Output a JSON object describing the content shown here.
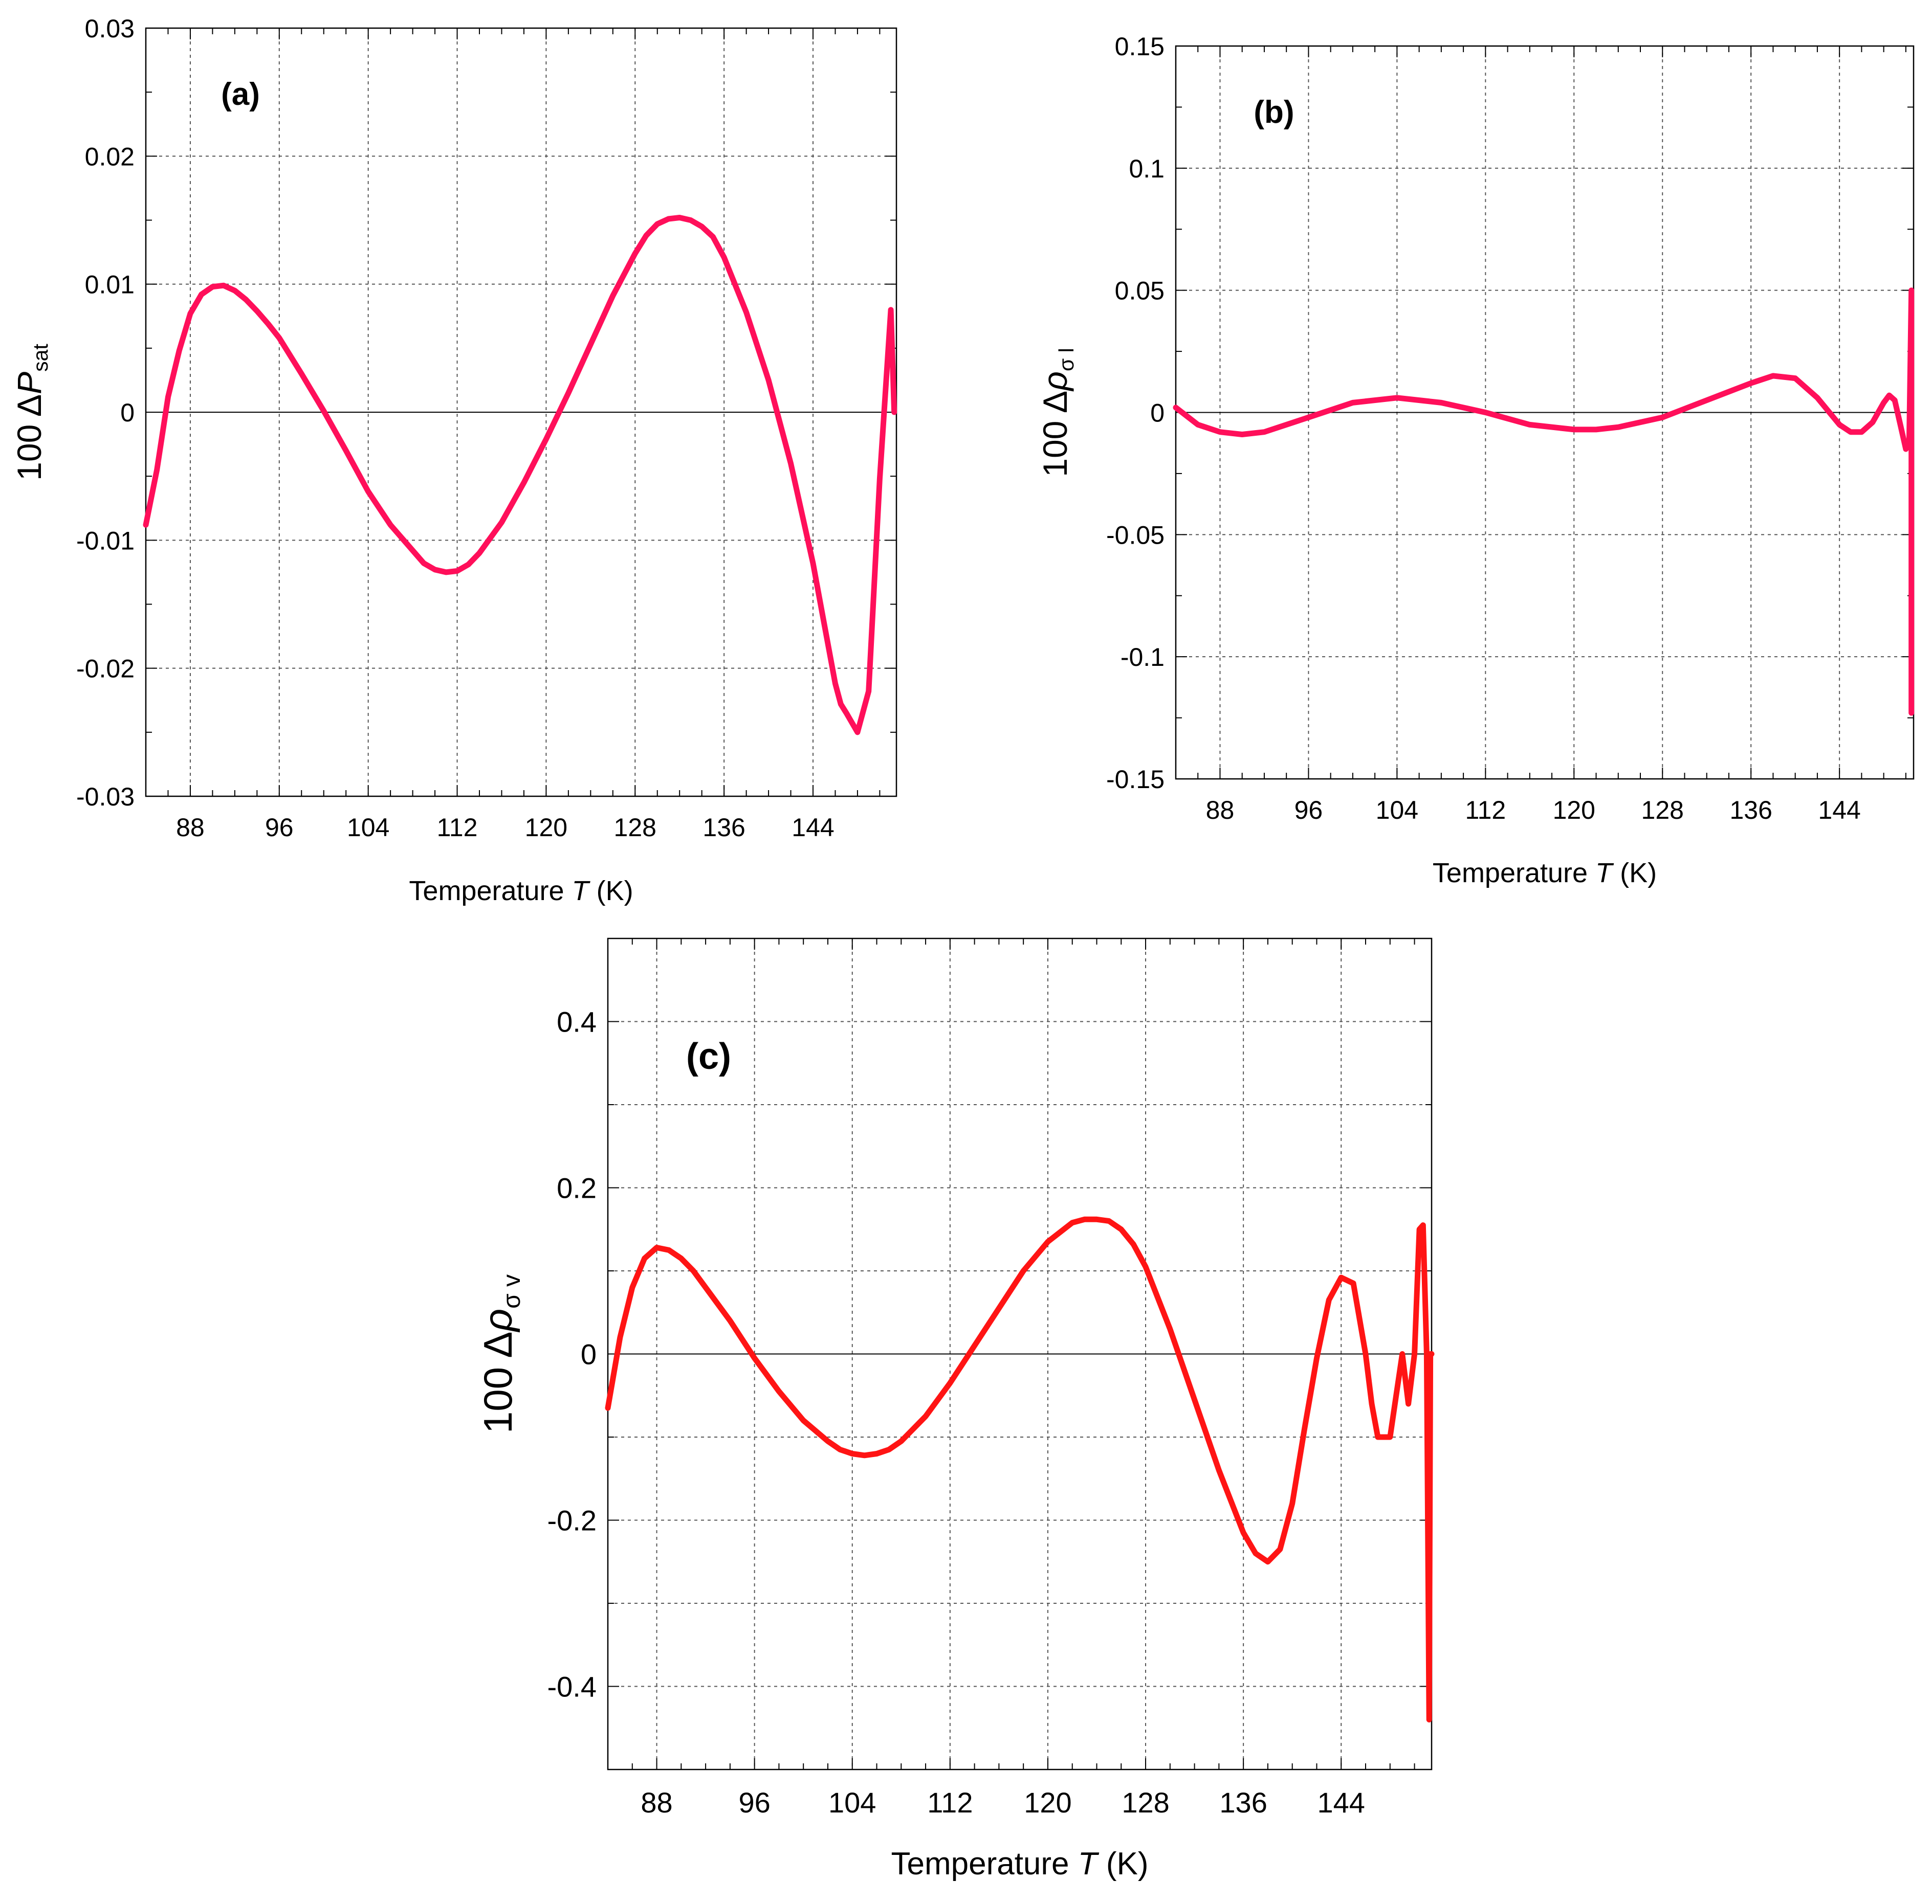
{
  "colors": {
    "panel_a": "#ff0f5a",
    "panel_b": "#ff0f5a",
    "panel_c": "#ff1414",
    "grid": "#555555",
    "axis": "#000000"
  },
  "chart_data": [
    {
      "id": "a",
      "type": "line",
      "panel_label": "(a)",
      "title": "",
      "xlabel": "Temperature T (K)",
      "xlabel_parts": {
        "pre": "Temperature ",
        "italic": "T",
        "post": " (K)"
      },
      "ylabel": "100 ΔPsat",
      "ylabel_parts": {
        "pre": "100 Δ",
        "italic": "P",
        "sub": "sat"
      },
      "xlim": [
        84,
        151.5
      ],
      "ylim": [
        -0.03,
        0.03
      ],
      "xticks": [
        88,
        96,
        104,
        112,
        120,
        128,
        136,
        144
      ],
      "xtick_labels": [
        "88",
        "96",
        "104",
        "112",
        "120",
        "128",
        "136",
        "144"
      ],
      "yticks": [
        -0.03,
        -0.02,
        -0.01,
        0,
        0.01,
        0.02,
        0.03
      ],
      "ytick_labels": [
        "-0.03",
        "-0.02",
        "-0.01",
        "0",
        "0.01",
        "0.02",
        "0.03"
      ],
      "grid": true,
      "zero_line": true,
      "series": [
        {
          "x": [
            84,
            85,
            86,
            87,
            88,
            89,
            90,
            91,
            92,
            93,
            94,
            95,
            96,
            98,
            100,
            102,
            104,
            106,
            108,
            109,
            110,
            111,
            112,
            113,
            114,
            116,
            118,
            120,
            122,
            124,
            126,
            128,
            129,
            130,
            131,
            132,
            133,
            134,
            135,
            136,
            138,
            140,
            142,
            144,
            145,
            146,
            146.5,
            147,
            148,
            149,
            150,
            151,
            151.3
          ],
          "y": [
            -0.0088,
            -0.0045,
            0.0012,
            0.0048,
            0.0077,
            0.0092,
            0.0098,
            0.0099,
            0.0095,
            0.0088,
            0.0079,
            0.0069,
            0.0058,
            0.003,
            0.0001,
            -0.003,
            -0.0062,
            -0.0088,
            -0.0108,
            -0.0118,
            -0.0123,
            -0.0125,
            -0.0124,
            -0.0119,
            -0.011,
            -0.0086,
            -0.0055,
            -0.0021,
            0.0015,
            0.0053,
            0.0091,
            0.0124,
            0.0138,
            0.0147,
            0.0151,
            0.0152,
            0.015,
            0.0145,
            0.0137,
            0.0121,
            0.0078,
            0.0025,
            -0.004,
            -0.0118,
            -0.0165,
            -0.0212,
            -0.0228,
            -0.0235,
            -0.025,
            -0.0218,
            -0.0052,
            0.008,
            0.0
          ]
        }
      ]
    },
    {
      "id": "b",
      "type": "line",
      "panel_label": "(b)",
      "title": "",
      "xlabel": "Temperature T (K)",
      "xlabel_parts": {
        "pre": "Temperature ",
        "italic": "T",
        "post": " (K)"
      },
      "ylabel": "100 Δρσl",
      "ylabel_parts": {
        "pre": "100 Δ",
        "italic": "ρ",
        "sub": "σ l"
      },
      "xlim": [
        84,
        150.7
      ],
      "ylim": [
        -0.15,
        0.15
      ],
      "xticks": [
        88,
        96,
        104,
        112,
        120,
        128,
        136,
        144
      ],
      "xtick_labels": [
        "88",
        "96",
        "104",
        "112",
        "120",
        "128",
        "136",
        "144"
      ],
      "yticks": [
        -0.15,
        -0.1,
        -0.05,
        0,
        0.05,
        0.1,
        0.15
      ],
      "ytick_labels": [
        "-0.15",
        "-0.1",
        "-0.05",
        "0",
        "0.05",
        "0.1",
        "0.15"
      ],
      "grid": true,
      "zero_line": true,
      "series": [
        {
          "x": [
            84,
            86,
            88,
            90,
            92,
            96,
            100,
            104,
            108,
            112,
            116,
            120,
            122,
            124,
            128,
            132,
            136,
            138,
            140,
            142,
            144,
            145,
            146,
            147,
            148,
            148.5,
            149,
            149.5,
            150,
            150.3,
            150.5,
            150.5
          ],
          "y": [
            0.002,
            -0.005,
            -0.008,
            -0.009,
            -0.008,
            -0.002,
            0.004,
            0.006,
            0.004,
            0.0,
            -0.005,
            -0.007,
            -0.007,
            -0.006,
            -0.002,
            0.005,
            0.012,
            0.015,
            0.014,
            0.006,
            -0.005,
            -0.008,
            -0.008,
            -0.004,
            0.004,
            0.007,
            0.005,
            -0.005,
            -0.015,
            -0.012,
            0.05,
            -0.123
          ]
        }
      ]
    },
    {
      "id": "c",
      "type": "line",
      "panel_label": "(c)",
      "title": "",
      "xlabel": "Temperature T (K)",
      "xlabel_parts": {
        "pre": "Temperature ",
        "italic": "T",
        "post": " (K)"
      },
      "ylabel": "100 Δρσv",
      "ylabel_parts": {
        "pre": "100 Δ",
        "italic": "ρ",
        "sub": "σ v"
      },
      "xlim": [
        84,
        151.4
      ],
      "ylim": [
        -0.5,
        0.5
      ],
      "xticks": [
        88,
        96,
        104,
        112,
        120,
        128,
        136,
        144
      ],
      "xtick_labels": [
        "88",
        "96",
        "104",
        "112",
        "120",
        "128",
        "136",
        "144"
      ],
      "yticks": [
        -0.4,
        -0.2,
        0,
        0.2,
        0.4
      ],
      "ytick_labels": [
        "-0.4",
        "-0.2",
        "0",
        "0.2",
        "0.4"
      ],
      "minor_yticks": [
        -0.3,
        -0.1,
        0.1,
        0.3
      ],
      "grid": true,
      "zero_line": true,
      "series": [
        {
          "x": [
            84,
            85,
            86,
            87,
            88,
            89,
            90,
            91,
            92,
            94,
            96,
            98,
            100,
            102,
            103,
            104,
            105,
            106,
            107,
            108,
            110,
            112,
            114,
            116,
            118,
            120,
            122,
            123,
            124,
            125,
            126,
            127,
            128,
            130,
            132,
            134,
            136,
            137,
            138,
            139,
            140,
            141,
            142,
            143,
            144,
            145,
            146,
            146.5,
            147,
            148,
            148.5,
            149,
            149.5,
            150,
            150.4,
            150.7,
            151.0,
            151.2,
            151.3,
            151.4
          ],
          "y": [
            -0.065,
            0.02,
            0.08,
            0.115,
            0.128,
            0.125,
            0.115,
            0.1,
            0.08,
            0.04,
            -0.005,
            -0.045,
            -0.08,
            -0.105,
            -0.115,
            -0.12,
            -0.122,
            -0.12,
            -0.115,
            -0.105,
            -0.075,
            -0.035,
            0.01,
            0.055,
            0.1,
            0.135,
            0.158,
            0.162,
            0.162,
            0.16,
            0.15,
            0.132,
            0.105,
            0.03,
            -0.055,
            -0.14,
            -0.215,
            -0.24,
            -0.25,
            -0.235,
            -0.18,
            -0.09,
            -0.005,
            0.065,
            0.092,
            0.085,
            0.0,
            -0.06,
            -0.1,
            -0.1,
            -0.05,
            0.0,
            -0.06,
            0.0,
            0.15,
            0.155,
            0.0,
            -0.44,
            0.0,
            0.0
          ]
        }
      ]
    }
  ]
}
